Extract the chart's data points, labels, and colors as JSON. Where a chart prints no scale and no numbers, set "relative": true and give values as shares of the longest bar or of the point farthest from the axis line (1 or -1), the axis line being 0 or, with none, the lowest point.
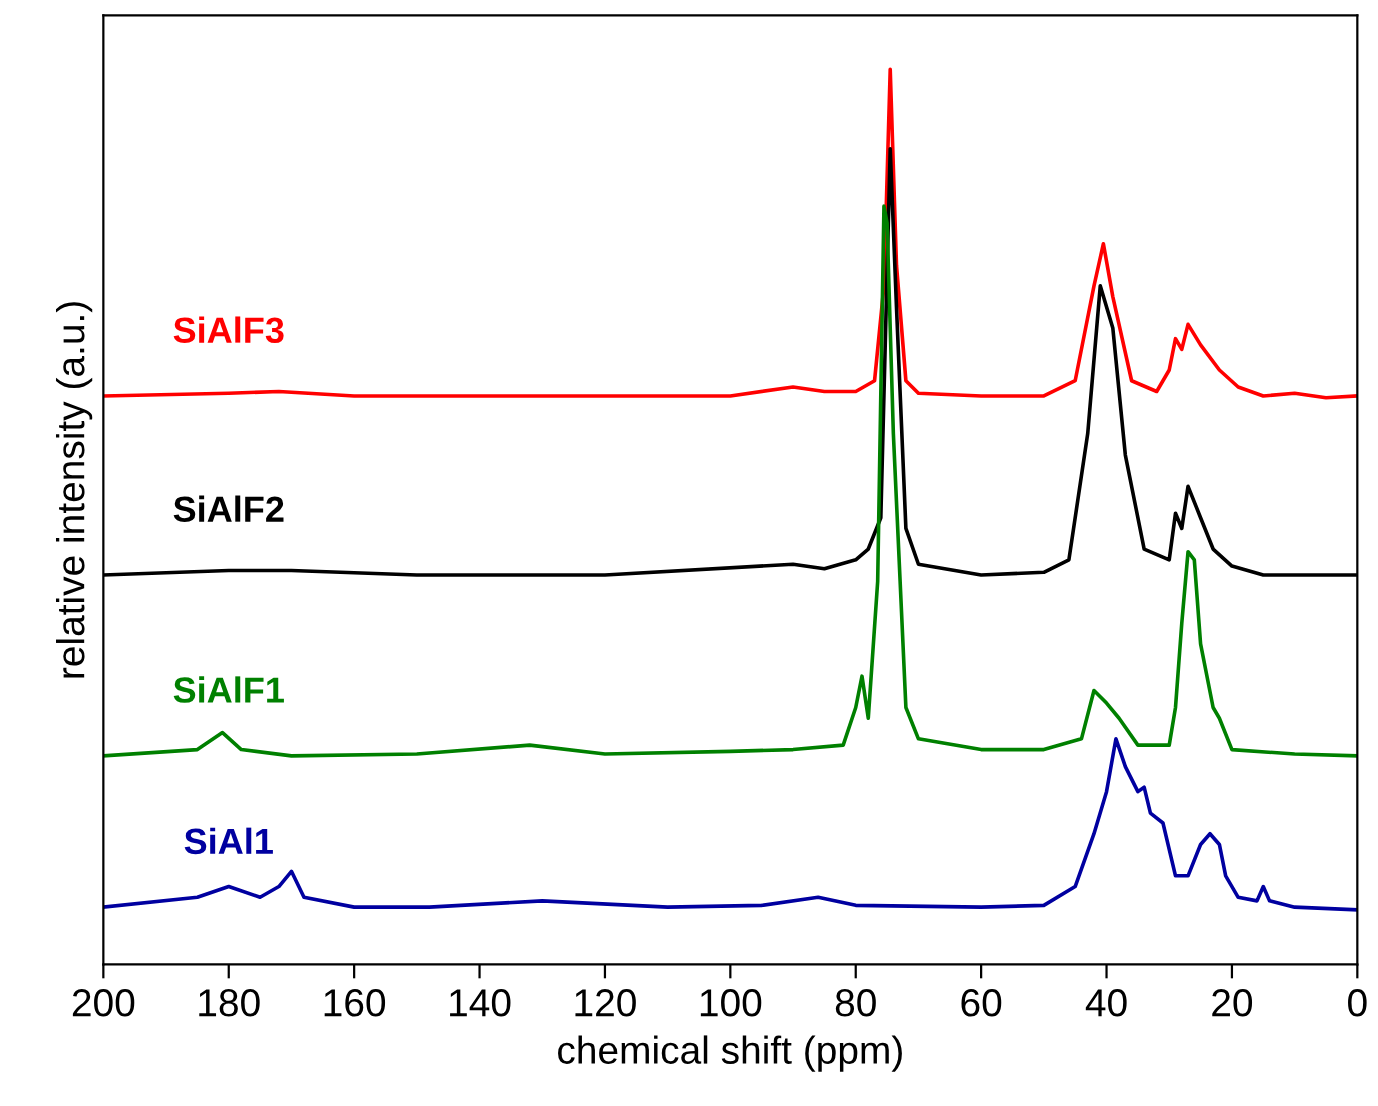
{
  "chart_data": {
    "type": "line",
    "relative": true,
    "xlabel": "chemical shift (ppm)",
    "ylabel": "relative intensity (a.u.)",
    "xlim": [
      200,
      0
    ],
    "xticks": [
      200,
      180,
      160,
      140,
      120,
      100,
      80,
      60,
      40,
      20,
      0
    ],
    "grid": false,
    "legend": false,
    "marker": "none",
    "line_style": "solid",
    "tick_labels": "x",
    "series": [
      {
        "name": "SiAlF3",
        "color": "#ff0000",
        "x": [
          200,
          180,
          172,
          160,
          120,
          100,
          90,
          85,
          80,
          77,
          75.5,
          74.5,
          73.5,
          72,
          70,
          60,
          50,
          45,
          42,
          40.5,
          39,
          36,
          32,
          30,
          29,
          28,
          27,
          25,
          22,
          19,
          15,
          10,
          5,
          0
        ],
        "values": [
          0.635,
          0.638,
          0.64,
          0.635,
          0.635,
          0.635,
          0.645,
          0.64,
          0.64,
          0.652,
          0.758,
          1.0,
          0.781,
          0.652,
          0.638,
          0.635,
          0.635,
          0.652,
          0.758,
          0.805,
          0.746,
          0.652,
          0.64,
          0.664,
          0.699,
          0.687,
          0.715,
          0.692,
          0.664,
          0.645,
          0.635,
          0.638,
          0.633,
          0.635
        ]
      },
      {
        "name": "SiAlF2",
        "color": "#000000",
        "x": [
          200,
          180,
          170,
          150,
          120,
          90,
          85,
          80,
          78,
          76,
          74.5,
          73.5,
          72,
          70,
          60,
          50,
          46,
          43,
          41,
          39,
          37,
          34,
          30,
          29,
          28,
          27,
          25,
          23,
          20,
          15,
          5,
          0
        ],
        "values": [
          0.435,
          0.44,
          0.44,
          0.435,
          0.435,
          0.447,
          0.442,
          0.452,
          0.464,
          0.499,
          0.911,
          0.734,
          0.487,
          0.447,
          0.435,
          0.438,
          0.452,
          0.593,
          0.758,
          0.711,
          0.569,
          0.464,
          0.452,
          0.504,
          0.487,
          0.534,
          0.499,
          0.464,
          0.445,
          0.435,
          0.435,
          0.435
        ]
      },
      {
        "name": "SiAlF1",
        "color": "#008000",
        "x": [
          200,
          185,
          181,
          178,
          170,
          150,
          132,
          120,
          100,
          90,
          82,
          80,
          79,
          78,
          76.5,
          75.5,
          75,
          74,
          72,
          70,
          60,
          50,
          44,
          42,
          41,
          40,
          38,
          35,
          30,
          29,
          28,
          27,
          26,
          25,
          23,
          22,
          20,
          10,
          0
        ],
        "values": [
          0.233,
          0.24,
          0.259,
          0.24,
          0.233,
          0.235,
          0.245,
          0.235,
          0.238,
          0.24,
          0.245,
          0.287,
          0.322,
          0.275,
          0.428,
          0.847,
          0.828,
          0.593,
          0.287,
          0.252,
          0.24,
          0.24,
          0.252,
          0.306,
          0.299,
          0.292,
          0.275,
          0.245,
          0.245,
          0.287,
          0.381,
          0.461,
          0.452,
          0.358,
          0.287,
          0.275,
          0.24,
          0.235,
          0.233
        ]
      },
      {
        "name": "SiAl1",
        "color": "#0000a0",
        "x": [
          200,
          185,
          180,
          175,
          172,
          170,
          168,
          160,
          148,
          130,
          110,
          95,
          86,
          80,
          60,
          50,
          45,
          42,
          40,
          38.5,
          37,
          35,
          34,
          33,
          31,
          29,
          27,
          25,
          23.5,
          22,
          21,
          19,
          16,
          15,
          14,
          10,
          0
        ],
        "values": [
          0.064,
          0.075,
          0.087,
          0.075,
          0.087,
          0.104,
          0.075,
          0.064,
          0.064,
          0.071,
          0.064,
          0.066,
          0.075,
          0.066,
          0.064,
          0.066,
          0.087,
          0.146,
          0.193,
          0.252,
          0.221,
          0.193,
          0.198,
          0.169,
          0.158,
          0.099,
          0.099,
          0.134,
          0.146,
          0.134,
          0.099,
          0.075,
          0.071,
          0.087,
          0.071,
          0.064,
          0.061
        ]
      }
    ]
  }
}
